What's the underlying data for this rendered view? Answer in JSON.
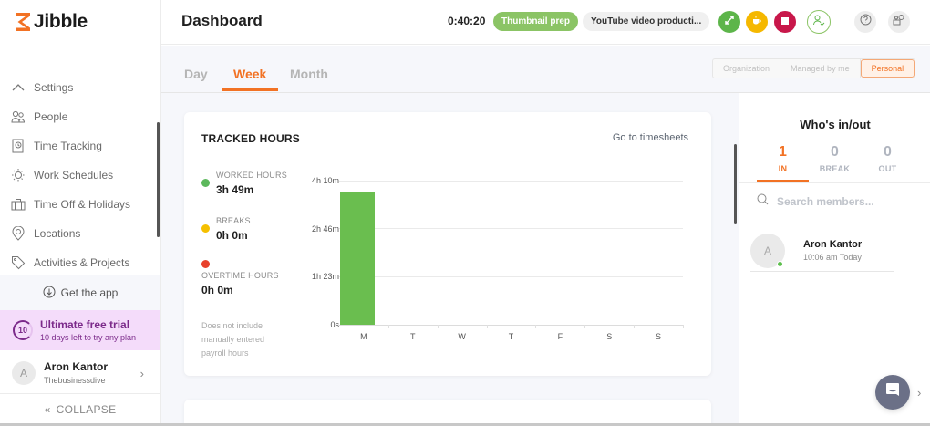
{
  "brand": {
    "name": "Jibble",
    "accent": "#f27224"
  },
  "sidebar": {
    "items": [
      {
        "label": "Settings",
        "icon": "chevron-up-icon"
      },
      {
        "label": "People",
        "icon": "people-icon"
      },
      {
        "label": "Time Tracking",
        "icon": "time-tracking-icon"
      },
      {
        "label": "Work Schedules",
        "icon": "schedule-icon"
      },
      {
        "label": "Time Off & Holidays",
        "icon": "suitcase-icon"
      },
      {
        "label": "Locations",
        "icon": "location-pin-icon"
      },
      {
        "label": "Activities & Projects",
        "icon": "tag-icon"
      }
    ],
    "get_app": "Get the app",
    "trial": {
      "days": "10",
      "title": "Ultimate free trial",
      "subtitle": "10 days left to try any plan"
    },
    "user": {
      "initial": "A",
      "name": "Aron Kantor",
      "org": "Thebusinessdive"
    },
    "collapse": "COLLAPSE"
  },
  "topbar": {
    "title": "Dashboard",
    "timer": "0:40:20",
    "activity": "Thumbnail prep",
    "project": "YouTube video producti...",
    "buttons": {
      "switch_color": "#5db54a",
      "break_color": "#f5b800",
      "stop_color": "#c8174a"
    }
  },
  "tabs": {
    "items": [
      "Day",
      "Week",
      "Month"
    ],
    "active": "Week",
    "scope": [
      "Organization",
      "Managed by me",
      "Personal"
    ],
    "scope_active": "Personal"
  },
  "tracked": {
    "title": "TRACKED HOURS",
    "link": "Go to timesheets",
    "legend": [
      {
        "label": "WORKED HOURS",
        "value": "3h 49m",
        "color": "#5cb85c"
      },
      {
        "label": "BREAKS",
        "value": "0h 0m",
        "color": "#f5c000"
      },
      {
        "label": "OVERTIME HOURS",
        "value": "0h 0m",
        "color": "#e8412c"
      }
    ],
    "note": "Does not include manually entered payroll hours"
  },
  "chart_data": {
    "type": "bar",
    "title": "TRACKED HOURS",
    "categories": [
      "M",
      "T",
      "W",
      "T",
      "F",
      "S",
      "S"
    ],
    "values_minutes": [
      229,
      0,
      0,
      0,
      0,
      0,
      0
    ],
    "values_label": [
      "3h 49m",
      "0",
      "0",
      "0",
      "0",
      "0",
      "0"
    ],
    "yticks": [
      "0s",
      "1h 23m",
      "2h 46m",
      "4h 10m"
    ],
    "ylim_minutes": [
      0,
      250
    ],
    "xlabel": "",
    "ylabel": "",
    "grid": true,
    "color": "#6abe4f"
  },
  "who": {
    "title": "Who's in/out",
    "stats": [
      {
        "count": "1",
        "label": "IN"
      },
      {
        "count": "0",
        "label": "BREAK"
      },
      {
        "count": "0",
        "label": "OUT"
      }
    ],
    "search_placeholder": "Search members...",
    "members": [
      {
        "initial": "A",
        "name": "Aron Kantor",
        "time": "10:06 am Today",
        "status": "online"
      }
    ]
  }
}
